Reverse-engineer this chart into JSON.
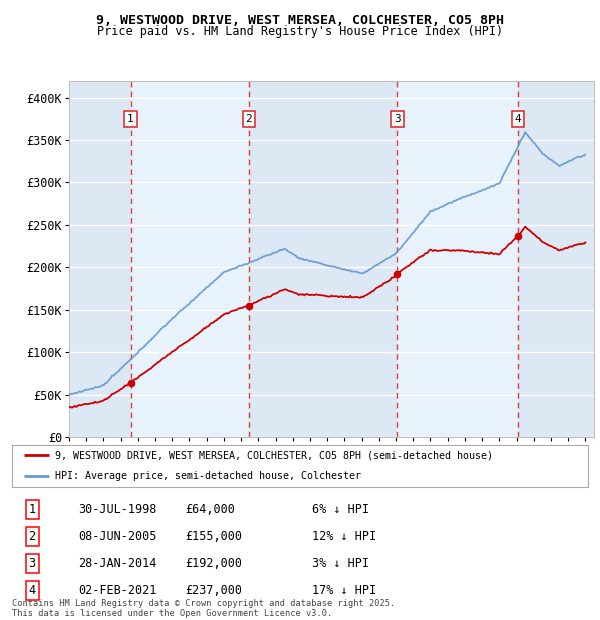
{
  "title": "9, WESTWOOD DRIVE, WEST MERSEA, COLCHESTER, CO5 8PH",
  "subtitle": "Price paid vs. HM Land Registry's House Price Index (HPI)",
  "ylim": [
    0,
    420000
  ],
  "yticks": [
    0,
    50000,
    100000,
    150000,
    200000,
    250000,
    300000,
    350000,
    400000
  ],
  "ytick_labels": [
    "£0",
    "£50K",
    "£100K",
    "£150K",
    "£200K",
    "£250K",
    "£300K",
    "£350K",
    "£400K"
  ],
  "sale_years_float": [
    1998.575,
    2005.44,
    2014.08,
    2021.09
  ],
  "sale_prices": [
    64000,
    155000,
    192000,
    237000
  ],
  "legend_line1": "9, WESTWOOD DRIVE, WEST MERSEA, COLCHESTER, CO5 8PH (semi-detached house)",
  "legend_line2": "HPI: Average price, semi-detached house, Colchester",
  "footer1": "Contains HM Land Registry data © Crown copyright and database right 2025.",
  "footer2": "This data is licensed under the Open Government Licence v3.0.",
  "red_color": "#cc0000",
  "blue_line_color": "#6699cc",
  "blue_fill_color": "#ddeeff",
  "bg_color": "#ffffff",
  "vline_color": "#dd2222",
  "table_rows": [
    [
      "1",
      "30-JUL-1998",
      "£64,000",
      "6% ↓ HPI"
    ],
    [
      "2",
      "08-JUN-2005",
      "£155,000",
      "12% ↓ HPI"
    ],
    [
      "3",
      "28-JAN-2014",
      "£192,000",
      "3% ↓ HPI"
    ],
    [
      "4",
      "02-FEB-2021",
      "£237,000",
      "17% ↓ HPI"
    ]
  ]
}
